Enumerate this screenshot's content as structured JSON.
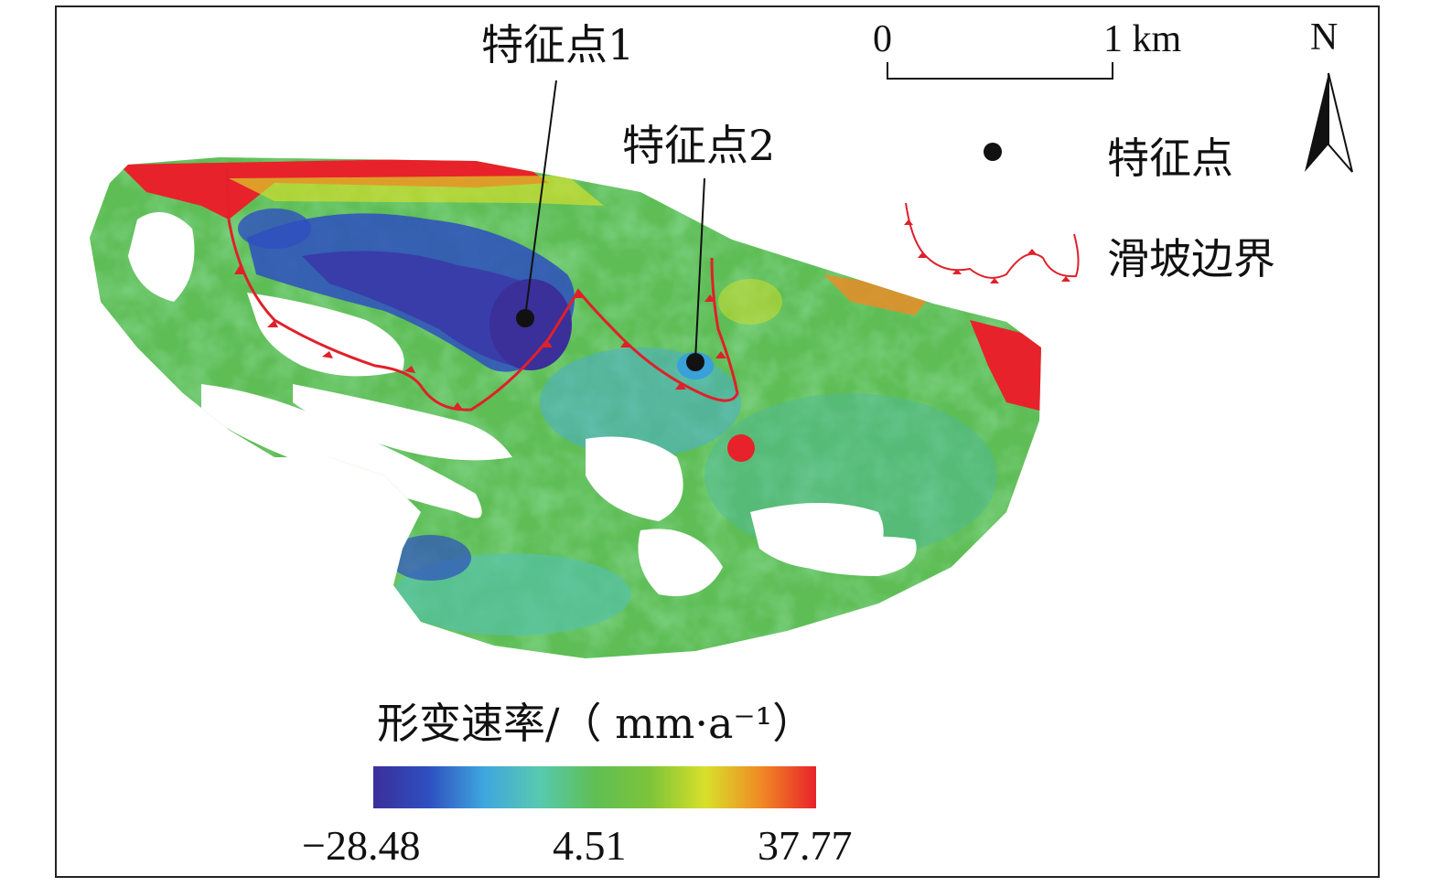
{
  "map": {
    "feature_point_1_label": "特征点1",
    "feature_point_2_label": "特征点2",
    "north_label": "N",
    "scale_bar": {
      "start_label": "0",
      "end_label": "1 km"
    },
    "legend": {
      "feature_point_label": "特征点",
      "landslide_boundary_label": "滑坡边界"
    },
    "colorbar": {
      "title": "形变速率/（ mm·a⁻¹）",
      "min_label": "−28.48",
      "mid_label": "4.51",
      "max_label": "37.77",
      "min_value": -28.48,
      "mid_value": 4.51,
      "max_value": 37.77,
      "colors": [
        "#3b2f9a",
        "#2e4fc0",
        "#3fa6de",
        "#57c9b0",
        "#5fbf54",
        "#7dc43a",
        "#d8e02a",
        "#f08a25",
        "#e8222a"
      ]
    },
    "colors": {
      "deformation_high": "#e8222a",
      "deformation_low": "#3b2f9a",
      "deformation_mid": "#5fbf54",
      "boundary": "#e0202a"
    }
  }
}
